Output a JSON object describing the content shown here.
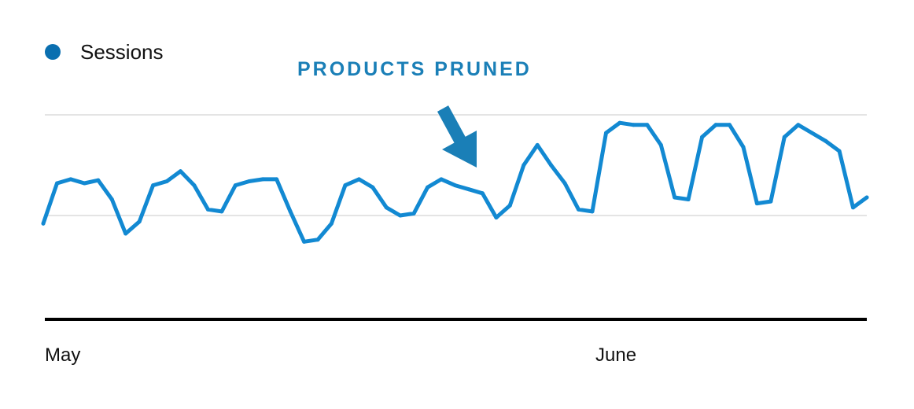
{
  "colors": {
    "series": "#1289d2",
    "legend_dot": "#0a6fb0",
    "annotation": "#1a7fb7",
    "gridline": "#e4e4e4",
    "baseline": "#000000"
  },
  "chart_data": {
    "type": "line",
    "title": "",
    "xlabel": "",
    "ylabel": "",
    "x_tick_labels": [
      "May",
      "June"
    ],
    "grid": true,
    "legend_placement": "top-left",
    "ylim": [
      0,
      100
    ],
    "series": [
      {
        "name": "Sessions",
        "values": [
          46,
          66,
          68,
          66,
          67.5,
          58,
          41,
          47,
          65,
          67,
          72,
          65,
          53,
          52,
          65,
          67,
          68,
          68,
          52,
          37,
          38,
          46,
          65,
          68,
          64,
          54,
          50,
          51,
          64,
          68,
          65,
          63,
          61,
          49,
          55,
          75,
          85,
          75,
          66,
          53,
          52,
          91,
          96,
          95,
          95,
          85,
          59,
          58,
          89,
          95,
          95,
          84,
          56,
          57,
          89,
          95,
          91,
          87,
          82,
          54,
          59
        ]
      }
    ],
    "annotations": [
      {
        "text": "PRODUCTS PRUNED",
        "point_index": 33
      }
    ]
  }
}
